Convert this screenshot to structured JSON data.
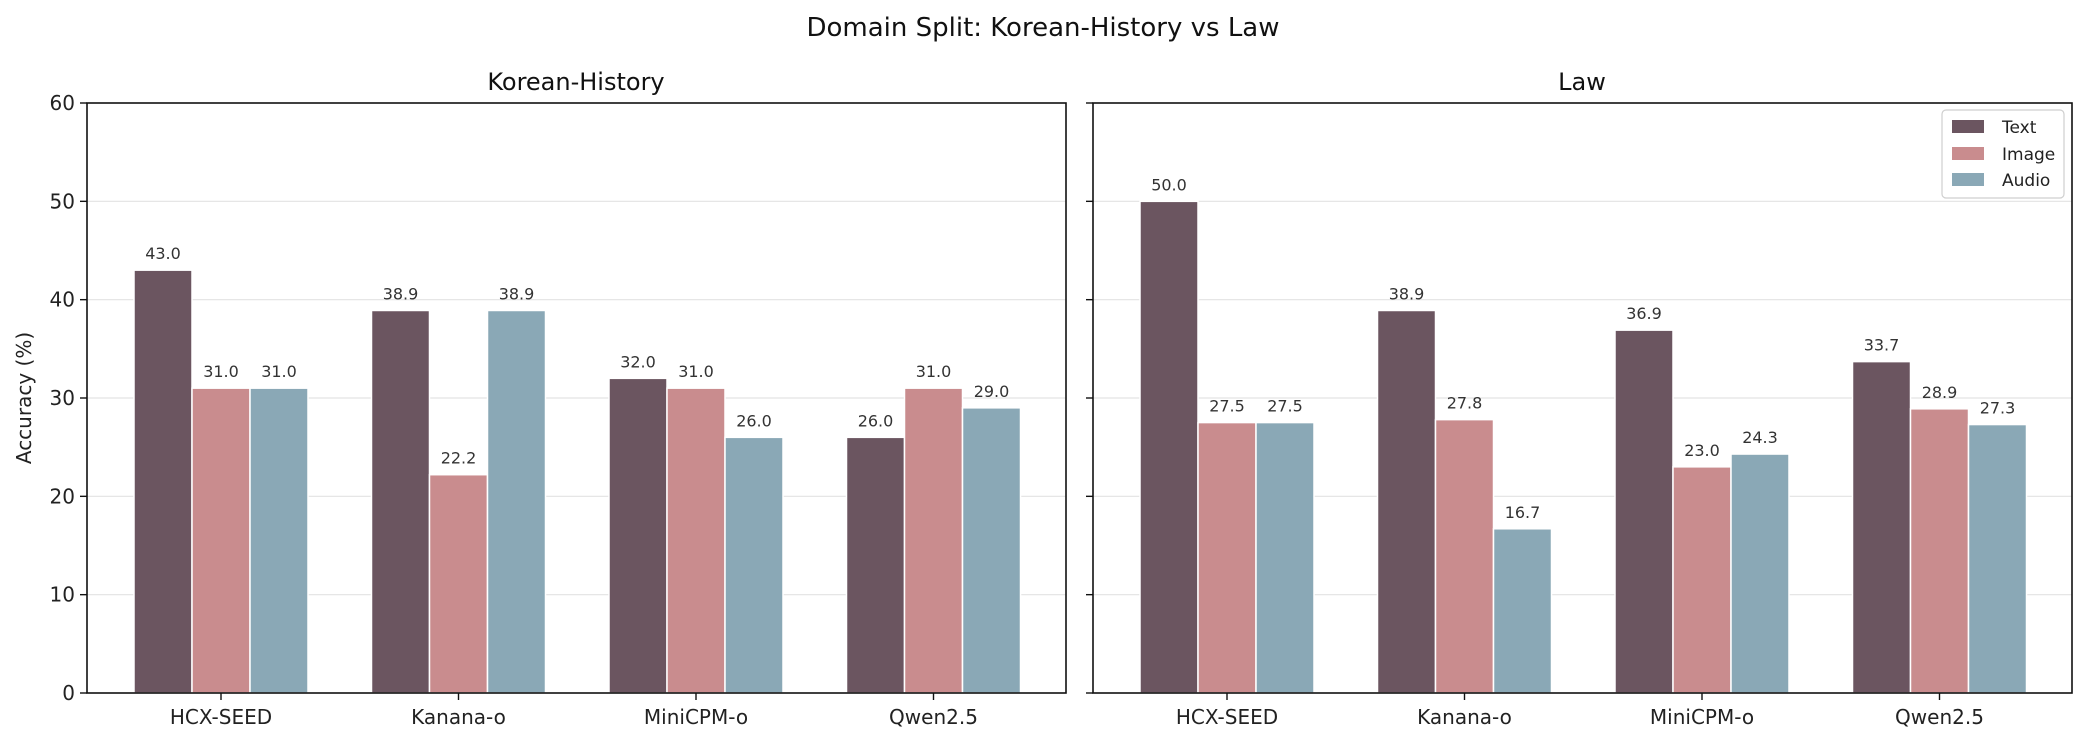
{
  "title": "Domain Split: Korean-History vs Law",
  "colors": {
    "Text": "#6b5560",
    "Image": "#c98c8e",
    "Audio": "#8aa8b6"
  },
  "chart_data": [
    {
      "type": "bar",
      "title": "Korean-History",
      "xlabel": "",
      "ylabel": "Accuracy (%)",
      "ylim": [
        0,
        60
      ],
      "yticks": [
        "0",
        "10",
        "20",
        "30",
        "40",
        "50",
        "60"
      ],
      "grid": true,
      "categories": [
        "HCX-SEED",
        "Kanana-o",
        "MiniCPM-o",
        "Qwen2.5"
      ],
      "series": [
        {
          "name": "Text",
          "values": [
            43.0,
            38.9,
            32.0,
            26.0
          ],
          "labels": [
            "43.0",
            "38.9",
            "32.0",
            "26.0"
          ]
        },
        {
          "name": "Image",
          "values": [
            31.0,
            22.2,
            31.0,
            31.0
          ],
          "labels": [
            "31.0",
            "22.2",
            "31.0",
            "31.0"
          ]
        },
        {
          "name": "Audio",
          "values": [
            31.0,
            38.9,
            26.0,
            29.0
          ],
          "labels": [
            "31.0",
            "38.9",
            "26.0",
            "29.0"
          ]
        }
      ]
    },
    {
      "type": "bar",
      "title": "Law",
      "xlabel": "",
      "ylabel": "",
      "ylim": [
        0,
        60
      ],
      "grid": true,
      "legend": "top-right",
      "categories": [
        "HCX-SEED",
        "Kanana-o",
        "MiniCPM-o",
        "Qwen2.5"
      ],
      "series": [
        {
          "name": "Text",
          "values": [
            50.0,
            38.9,
            36.9,
            33.7
          ],
          "labels": [
            "50.0",
            "38.9",
            "36.9",
            "33.7"
          ]
        },
        {
          "name": "Image",
          "values": [
            27.5,
            27.8,
            23.0,
            28.9
          ],
          "labels": [
            "27.5",
            "27.8",
            "23.0",
            "28.9"
          ]
        },
        {
          "name": "Audio",
          "values": [
            27.5,
            16.7,
            24.3,
            27.3
          ],
          "labels": [
            "27.5",
            "16.7",
            "24.3",
            "27.3"
          ]
        }
      ]
    }
  ]
}
